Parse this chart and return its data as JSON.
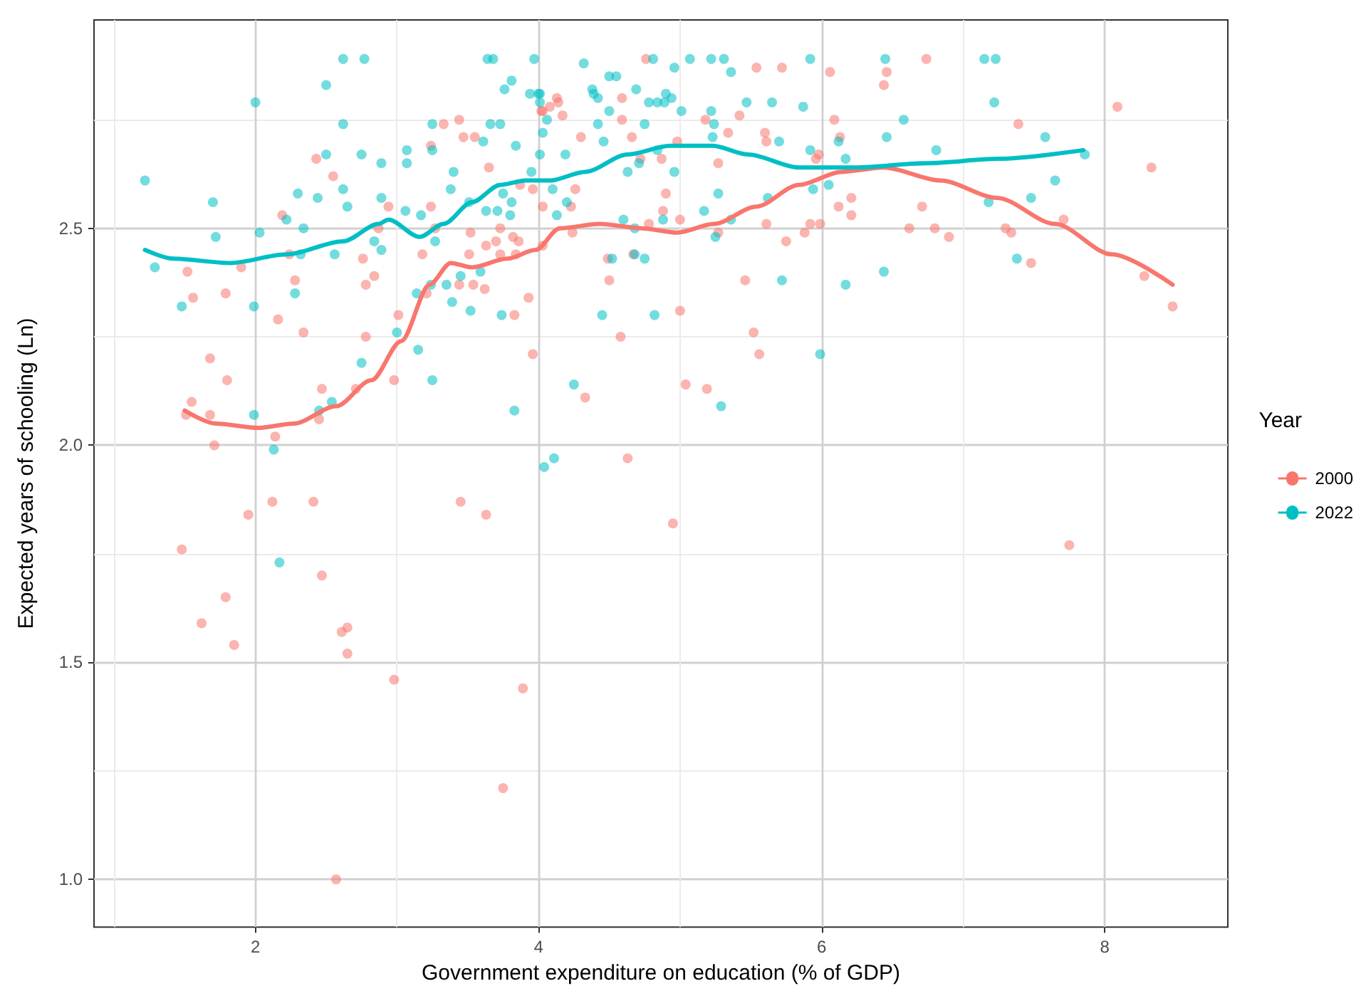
{
  "chart_data": {
    "type": "scatter",
    "xlabel": "Government expenditure on education (% of GDP)",
    "ylabel": "Expected years of schooling (Ln)",
    "legend_title": "Year",
    "legend": "right",
    "grid": true,
    "xlim": [
      0.86,
      8.87
    ],
    "ylim": [
      0.89,
      2.98
    ],
    "xticks": [
      2,
      4,
      6,
      8
    ],
    "yticks": [
      {
        "value": 1,
        "label": "1.0"
      },
      {
        "value": 1.5,
        "label": "1.5"
      },
      {
        "value": 2,
        "label": "2.0"
      },
      {
        "value": 2.5,
        "label": "2.5"
      }
    ],
    "series": [
      {
        "name": "2000",
        "color": "#f8766d",
        "marker": "circle",
        "x": [
          1.52,
          1.56,
          1.79,
          1.9,
          1.51,
          1.55,
          1.68,
          1.68,
          1.8,
          1.71,
          2.14,
          2.45,
          2.47,
          2.71,
          2.98,
          2.78,
          3.01,
          2.34,
          2.16,
          2.28,
          2.24,
          2.19,
          2.43,
          2.55,
          2.76,
          2.84,
          2.78,
          2.87,
          2.94,
          3.18,
          3.24,
          3.27,
          3.21,
          3.44,
          3.54,
          3.62,
          3.52,
          3.51,
          3.63,
          3.7,
          3.73,
          3.82,
          3.86,
          3.84,
          3.73,
          4.03,
          3.93,
          3.83,
          3.96,
          3.24,
          3.33,
          3.44,
          3.47,
          3.55,
          3.65,
          4.03,
          4.08,
          4.13,
          4.03,
          3.96,
          3.87,
          2.12,
          2.41,
          1.95,
          1.48,
          2.47,
          1.79,
          1.62,
          1.85,
          2.65,
          2.61,
          2.65,
          2.98,
          3.45,
          3.63,
          3.89,
          3.75,
          2.57,
          4.63,
          4.95,
          4.76,
          5.54,
          5.72,
          6.06,
          4.14,
          4.17,
          4.02,
          4.59,
          4.59,
          4.3,
          4.66,
          5.18,
          5.42,
          5.34,
          5.6,
          5.61,
          6.09,
          6.13,
          4.98,
          4.87,
          4.72,
          5.27,
          5.96,
          5.98,
          4.26,
          4.9,
          4.88,
          4.23,
          6.12,
          6.21,
          6.21,
          5.92,
          5.99,
          5.88,
          5.61,
          5.75,
          5.0,
          4.78,
          4.24,
          5.27,
          4.49,
          4.67,
          4.5,
          5.46,
          5.0,
          4.58,
          5.52,
          5.56,
          5.04,
          5.19,
          4.33,
          6.74,
          6.46,
          6.44,
          8.09,
          7.39,
          8.33,
          6.71,
          6.62,
          6.8,
          6.9,
          7.3,
          7.34,
          7.71,
          7.48,
          8.28,
          8.48,
          7.75
        ],
        "values": [
          2.4,
          2.34,
          2.35,
          2.41,
          2.07,
          2.1,
          2.07,
          2.2,
          2.15,
          2.0,
          2.02,
          2.06,
          2.13,
          2.13,
          2.15,
          2.25,
          2.3,
          2.26,
          2.29,
          2.38,
          2.44,
          2.53,
          2.66,
          2.62,
          2.43,
          2.39,
          2.37,
          2.5,
          2.55,
          2.44,
          2.55,
          2.5,
          2.35,
          2.37,
          2.37,
          2.36,
          2.49,
          2.44,
          2.46,
          2.47,
          2.5,
          2.48,
          2.47,
          2.44,
          2.44,
          2.46,
          2.34,
          2.3,
          2.21,
          2.69,
          2.74,
          2.75,
          2.71,
          2.71,
          2.64,
          2.77,
          2.78,
          2.8,
          2.55,
          2.59,
          2.6,
          1.87,
          1.87,
          1.84,
          1.76,
          1.7,
          1.65,
          1.59,
          1.54,
          1.58,
          1.57,
          1.52,
          1.46,
          1.87,
          1.84,
          1.44,
          1.21,
          1.0,
          1.97,
          1.82,
          2.89,
          2.87,
          2.87,
          2.86,
          2.79,
          2.76,
          2.77,
          2.8,
          2.75,
          2.71,
          2.71,
          2.75,
          2.76,
          2.72,
          2.72,
          2.7,
          2.75,
          2.71,
          2.7,
          2.66,
          2.66,
          2.65,
          2.66,
          2.67,
          2.59,
          2.58,
          2.54,
          2.55,
          2.55,
          2.57,
          2.53,
          2.51,
          2.51,
          2.49,
          2.51,
          2.47,
          2.52,
          2.51,
          2.49,
          2.49,
          2.43,
          2.44,
          2.38,
          2.38,
          2.31,
          2.25,
          2.26,
          2.21,
          2.14,
          2.13,
          2.11,
          2.89,
          2.86,
          2.83,
          2.78,
          2.74,
          2.64,
          2.55,
          2.5,
          2.5,
          2.48,
          2.5,
          2.49,
          2.52,
          2.42,
          2.39,
          2.32,
          1.77
        ]
      },
      {
        "name": "2022",
        "color": "#00bfc4",
        "marker": "circle",
        "x": [
          1.22,
          1.29,
          1.48,
          1.7,
          1.72,
          2.0,
          2.03,
          1.99,
          1.99,
          2.13,
          2.62,
          2.77,
          2.5,
          2.62,
          2.5,
          2.75,
          2.3,
          2.44,
          2.62,
          2.65,
          2.22,
          2.34,
          2.32,
          2.56,
          2.28,
          2.75,
          2.45,
          2.54,
          2.84,
          2.89,
          2.89,
          2.89,
          3.07,
          3.07,
          3.25,
          3.25,
          3.06,
          3.17,
          3.27,
          3.0,
          3.14,
          3.15,
          3.25,
          3.24,
          3.35,
          3.39,
          3.52,
          3.45,
          3.59,
          3.4,
          3.38,
          3.51,
          3.63,
          3.71,
          3.8,
          3.81,
          3.75,
          3.74,
          3.83,
          3.61,
          3.66,
          3.73,
          3.84,
          3.64,
          3.68,
          3.81,
          3.76,
          3.97,
          3.94,
          4.01,
          4.06,
          4.03,
          4.01,
          3.95,
          2.17,
          4.04,
          4.11,
          4.32,
          4.0,
          4.01,
          4.19,
          4.1,
          4.2,
          4.13,
          4.38,
          4.39,
          4.42,
          4.5,
          4.55,
          4.5,
          4.42,
          4.46,
          4.69,
          4.78,
          4.84,
          4.89,
          4.9,
          4.94,
          4.75,
          4.96,
          4.81,
          5.07,
          5.22,
          5.31,
          5.36,
          5.01,
          5.22,
          5.24,
          5.23,
          5.47,
          5.65,
          5.7,
          5.87,
          5.92,
          4.84,
          4.71,
          4.63,
          4.96,
          5.27,
          5.17,
          4.88,
          4.6,
          4.68,
          5.36,
          5.25,
          5.62,
          5.92,
          5.94,
          6.05,
          6.17,
          6.12,
          4.52,
          4.68,
          4.75,
          5.72,
          6.17,
          4.45,
          4.82,
          5.99,
          4.25,
          5.29,
          6.45,
          7.15,
          7.23,
          7.22,
          6.58,
          6.46,
          6.81,
          7.58,
          7.86,
          7.65,
          7.18,
          7.48,
          7.38,
          6.44
        ],
        "values": [
          2.61,
          2.41,
          2.32,
          2.56,
          2.48,
          2.79,
          2.49,
          2.32,
          2.07,
          1.99,
          2.89,
          2.89,
          2.83,
          2.74,
          2.67,
          2.67,
          2.58,
          2.57,
          2.59,
          2.55,
          2.52,
          2.5,
          2.44,
          2.44,
          2.35,
          2.19,
          2.08,
          2.1,
          2.47,
          2.45,
          2.57,
          2.65,
          2.68,
          2.65,
          2.74,
          2.68,
          2.54,
          2.53,
          2.47,
          2.26,
          2.35,
          2.22,
          2.15,
          2.37,
          2.37,
          2.33,
          2.31,
          2.39,
          2.4,
          2.63,
          2.59,
          2.56,
          2.54,
          2.54,
          2.53,
          2.56,
          2.58,
          2.3,
          2.08,
          2.7,
          2.74,
          2.74,
          2.69,
          2.89,
          2.89,
          2.84,
          2.82,
          2.89,
          2.81,
          2.81,
          2.75,
          2.72,
          2.67,
          2.63,
          1.73,
          1.95,
          1.97,
          2.88,
          2.81,
          2.79,
          2.67,
          2.59,
          2.56,
          2.53,
          2.82,
          2.81,
          2.8,
          2.85,
          2.85,
          2.77,
          2.74,
          2.7,
          2.82,
          2.79,
          2.79,
          2.79,
          2.81,
          2.8,
          2.74,
          2.87,
          2.89,
          2.89,
          2.89,
          2.89,
          2.86,
          2.77,
          2.77,
          2.74,
          2.71,
          2.79,
          2.79,
          2.7,
          2.78,
          2.89,
          2.68,
          2.65,
          2.63,
          2.63,
          2.58,
          2.54,
          2.52,
          2.52,
          2.5,
          2.52,
          2.48,
          2.57,
          2.68,
          2.59,
          2.6,
          2.66,
          2.7,
          2.43,
          2.44,
          2.43,
          2.38,
          2.37,
          2.3,
          2.3,
          2.21,
          2.14,
          2.09,
          2.89,
          2.89,
          2.89,
          2.79,
          2.75,
          2.71,
          2.68,
          2.71,
          2.67,
          2.61,
          2.56,
          2.57,
          2.43,
          2.4
        ]
      },
      {
        "type": "line",
        "color": "#f8766d",
        "marker": "none",
        "x": [
          1.5,
          1.72,
          2.02,
          2.27,
          2.57,
          2.82,
          3.03,
          3.23,
          3.38,
          3.53,
          3.78,
          3.98,
          4.15,
          4.43,
          4.73,
          4.98,
          5.24,
          5.54,
          5.84,
          6.14,
          6.44,
          6.84,
          7.24,
          7.65,
          8.05,
          8.48
        ],
        "values": [
          2.08,
          2.05,
          2.04,
          2.05,
          2.09,
          2.15,
          2.24,
          2.37,
          2.42,
          2.41,
          2.43,
          2.45,
          2.5,
          2.51,
          2.5,
          2.49,
          2.51,
          2.55,
          2.6,
          2.63,
          2.64,
          2.61,
          2.57,
          2.51,
          2.44,
          2.37
        ]
      },
      {
        "type": "line",
        "color": "#00bfc4",
        "marker": "none",
        "x": [
          1.22,
          1.42,
          1.82,
          2.22,
          2.62,
          2.87,
          2.94,
          3.16,
          3.33,
          3.53,
          3.73,
          3.91,
          4.08,
          4.33,
          4.63,
          4.93,
          5.23,
          5.48,
          5.84,
          6.24,
          6.74,
          7.25,
          7.85
        ],
        "values": [
          2.45,
          2.43,
          2.42,
          2.44,
          2.47,
          2.51,
          2.52,
          2.48,
          2.51,
          2.56,
          2.6,
          2.61,
          2.61,
          2.63,
          2.67,
          2.69,
          2.69,
          2.67,
          2.64,
          2.64,
          2.65,
          2.66,
          2.68
        ]
      }
    ]
  }
}
